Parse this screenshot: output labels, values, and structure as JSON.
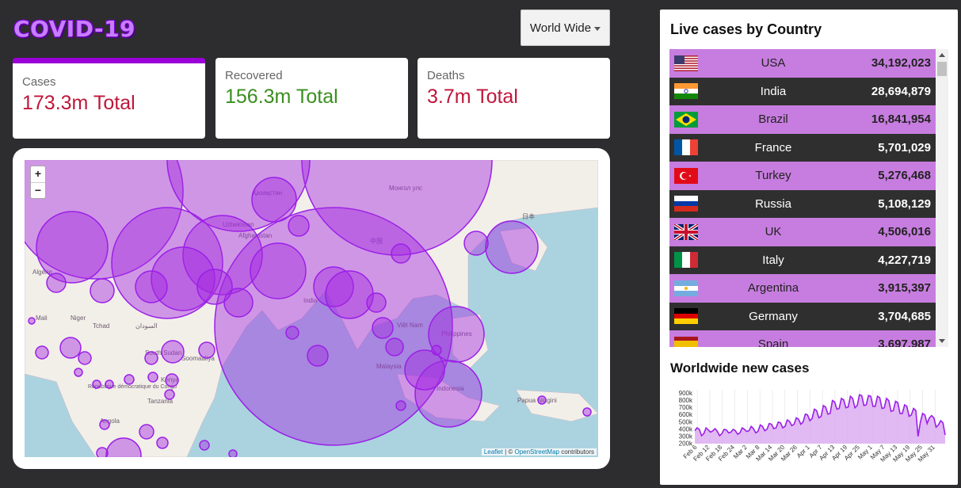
{
  "header": {
    "title": "COVID-19"
  },
  "region_select": {
    "selected": "World Wide"
  },
  "stats": [
    {
      "label": "Cases",
      "value": "173.3m Total"
    },
    {
      "label": "Recovered",
      "value": "156.3m Total"
    },
    {
      "label": "Deaths",
      "value": "3.7m Total"
    }
  ],
  "map": {
    "zoom_in": "+",
    "zoom_out": "−",
    "attribution_leaflet": "Leaflet",
    "attribution_sep": " | © ",
    "attribution_osm": "OpenStreetMap",
    "attribution_tail": " contributors",
    "labels": [
      "Қазақстан",
      "Монгол улс",
      "中国",
      "日本",
      "India",
      "Việt Nam",
      "Philippines",
      "Malaysia",
      "Indonesia",
      "Papua Niugini",
      "Mali",
      "Niger",
      "Tchad",
      "السودان",
      "South Sudan",
      "Soomaaliya",
      "Kenya",
      "Tanzania",
      "République démocratique du Congo",
      "Angola",
      "Algérie",
      "Uzbekistan",
      "Afghanistan"
    ],
    "circle_color": "#9b1fe8"
  },
  "live_cases": {
    "title": "Live cases by Country",
    "rows": [
      {
        "country": "USA",
        "cases": "34,192,023",
        "flag": "us-flag-icon"
      },
      {
        "country": "India",
        "cases": "28,694,879",
        "flag": "in-flag-icon"
      },
      {
        "country": "Brazil",
        "cases": "16,841,954",
        "flag": "br-flag-icon"
      },
      {
        "country": "France",
        "cases": "5,701,029",
        "flag": "fr-flag-icon"
      },
      {
        "country": "Turkey",
        "cases": "5,276,468",
        "flag": "tr-flag-icon"
      },
      {
        "country": "Russia",
        "cases": "5,108,129",
        "flag": "ru-flag-icon"
      },
      {
        "country": "UK",
        "cases": "4,506,016",
        "flag": "gb-flag-icon"
      },
      {
        "country": "Italy",
        "cases": "4,227,719",
        "flag": "it-flag-icon"
      },
      {
        "country": "Argentina",
        "cases": "3,915,397",
        "flag": "ar-flag-icon"
      },
      {
        "country": "Germany",
        "cases": "3,704,685",
        "flag": "de-flag-icon"
      },
      {
        "country": "Spain",
        "cases": "3,697,987",
        "flag": "es-flag-icon"
      }
    ]
  },
  "worldwide": {
    "title": "Worldwide new cases"
  },
  "chart_data": {
    "type": "area",
    "title": "Worldwide new cases",
    "x_ticks": [
      "Feb 6",
      "Feb 12",
      "Feb 18",
      "Feb 24",
      "Mar 2",
      "Mar 8",
      "Mar 14",
      "Mar 20",
      "Mar 26",
      "Apr 1",
      "Apr 7",
      "Apr 13",
      "Apr 19",
      "Apr 25",
      "May 1",
      "May 7",
      "May 13",
      "May 19",
      "May 25",
      "May 31"
    ],
    "y_ticks": [
      "200k",
      "300k",
      "400k",
      "500k",
      "600k",
      "700k",
      "800k",
      "900k"
    ],
    "ylim": [
      200000,
      950000
    ],
    "values": [
      380000,
      420000,
      400000,
      310000,
      340000,
      420000,
      390000,
      360000,
      380000,
      410000,
      370000,
      310000,
      340000,
      400000,
      390000,
      350000,
      360000,
      400000,
      380000,
      330000,
      350000,
      420000,
      400000,
      370000,
      380000,
      440000,
      410000,
      350000,
      370000,
      460000,
      440000,
      380000,
      400000,
      480000,
      470000,
      410000,
      420000,
      500000,
      490000,
      420000,
      440000,
      530000,
      510000,
      450000,
      470000,
      560000,
      540000,
      470000,
      500000,
      610000,
      600000,
      520000,
      550000,
      680000,
      660000,
      560000,
      580000,
      730000,
      710000,
      610000,
      620000,
      800000,
      780000,
      680000,
      690000,
      830000,
      810000,
      700000,
      710000,
      860000,
      830000,
      700000,
      730000,
      880000,
      870000,
      730000,
      740000,
      870000,
      860000,
      720000,
      720000,
      860000,
      840000,
      690000,
      700000,
      830000,
      800000,
      650000,
      660000,
      790000,
      770000,
      620000,
      620000,
      740000,
      720000,
      580000,
      600000,
      690000,
      660000,
      300000,
      500000,
      620000,
      600000,
      480000,
      560000,
      590000,
      560000,
      430000,
      460000,
      520000,
      490000,
      320000
    ],
    "line_color": "#9b1fe8",
    "fill_color": "#d9a8f0"
  },
  "colors": {
    "accent": "#9b00d9",
    "cases": "#c0163a",
    "recovered": "#3a8f1e",
    "deaths": "#c0163a"
  }
}
